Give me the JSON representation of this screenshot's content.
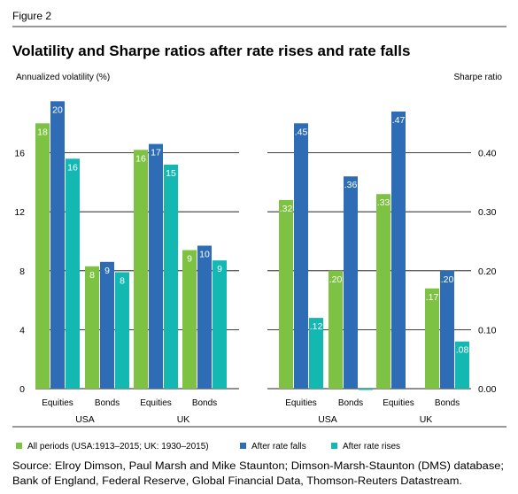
{
  "figure_label": "Figure 2",
  "chart_data": {
    "type": "bar",
    "title": "Volatility and Sharpe ratios after rate rises and rate falls",
    "y_left_label": "Annualized volatility (%)",
    "y_right_label": "Sharpe ratio",
    "y_left_lim": [
      0,
      20
    ],
    "y_left_ticks": [
      "0",
      "4",
      "8",
      "12",
      "16"
    ],
    "y_right_lim": [
      0,
      0.5
    ],
    "y_right_ticks": [
      "0.00",
      "0.10",
      "0.20",
      "0.30",
      "0.40"
    ],
    "grid": true,
    "legend_placement": "bottom",
    "series": [
      {
        "name": "All periods (USA:1913–2015; UK: 1930–2015)",
        "color": "#7dc242"
      },
      {
        "name": "After rate falls",
        "color": "#2e6db5"
      },
      {
        "name": "After rate rises",
        "color": "#14b8b3"
      }
    ],
    "panels": [
      {
        "axis": "left",
        "groups": [
          {
            "label": "USA",
            "categories": [
              {
                "label": "Equities",
                "values": [
                  18,
                  19.5,
                  15.6
                ],
                "labels": [
                  "18",
                  "20",
                  "16"
                ]
              },
              {
                "label": "Bonds",
                "values": [
                  8.3,
                  8.6,
                  7.9
                ],
                "labels": [
                  "8",
                  "9",
                  "8"
                ]
              }
            ]
          },
          {
            "label": "UK",
            "categories": [
              {
                "label": "Equities",
                "values": [
                  16.2,
                  16.6,
                  15.2
                ],
                "labels": [
                  "16",
                  "17",
                  "15"
                ]
              },
              {
                "label": "Bonds",
                "values": [
                  9.4,
                  9.7,
                  8.7
                ],
                "labels": [
                  "9",
                  "10",
                  "9"
                ]
              }
            ]
          }
        ]
      },
      {
        "axis": "right",
        "groups": [
          {
            "label": "USA",
            "categories": [
              {
                "label": "Equities",
                "values": [
                  0.32,
                  0.45,
                  0.12
                ],
                "labels": [
                  ".32",
                  ".45",
                  ".12"
                ]
              },
              {
                "label": "Bonds",
                "values": [
                  0.2,
                  0.36,
                  -0.002
                ],
                "labels": [
                  ".20",
                  ".36",
                  ""
                ]
              }
            ]
          },
          {
            "label": "UK",
            "categories": [
              {
                "label": "Equities",
                "values": [
                  0.33,
                  0.47,
                  0.0
                ],
                "labels": [
                  ".33",
                  ".47",
                  ""
                ]
              },
              {
                "label": "Bonds",
                "values": [
                  0.17,
                  0.2,
                  0.08
                ],
                "labels": [
                  ".17",
                  ".20",
                  ".08"
                ]
              }
            ]
          }
        ]
      }
    ]
  },
  "source": {
    "line1": "Source: Elroy Dimson, Paul Marsh and Mike Staunton; Dimson-Marsh-Staunton (DMS) database;",
    "line2": "Bank of England, Federal Reserve, Global Financial Data, Thomson-Reuters Datastream."
  }
}
